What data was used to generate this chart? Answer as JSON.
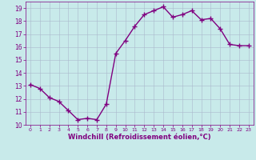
{
  "x": [
    0,
    1,
    2,
    3,
    4,
    5,
    6,
    7,
    8,
    9,
    10,
    11,
    12,
    13,
    14,
    15,
    16,
    17,
    18,
    19,
    20,
    21,
    22,
    23
  ],
  "y": [
    13.1,
    12.8,
    12.1,
    11.8,
    11.1,
    10.4,
    10.5,
    10.4,
    11.6,
    15.5,
    16.5,
    17.6,
    18.5,
    18.8,
    19.1,
    18.3,
    18.5,
    18.8,
    18.1,
    18.2,
    17.4,
    16.2,
    16.1,
    16.1
  ],
  "line_color": "#800080",
  "marker": "+",
  "marker_size": 4,
  "bg_color": "#c8eaea",
  "grid_color": "#aab8cc",
  "xlabel": "Windchill (Refroidissement éolien,°C)",
  "xlabel_color": "#800080",
  "tick_color": "#800080",
  "xlim": [
    -0.5,
    23.5
  ],
  "ylim": [
    10,
    19.5
  ],
  "yticks": [
    10,
    11,
    12,
    13,
    14,
    15,
    16,
    17,
    18,
    19
  ],
  "xticks": [
    0,
    1,
    2,
    3,
    4,
    5,
    6,
    7,
    8,
    9,
    10,
    11,
    12,
    13,
    14,
    15,
    16,
    17,
    18,
    19,
    20,
    21,
    22,
    23
  ],
  "line_width": 1.0
}
